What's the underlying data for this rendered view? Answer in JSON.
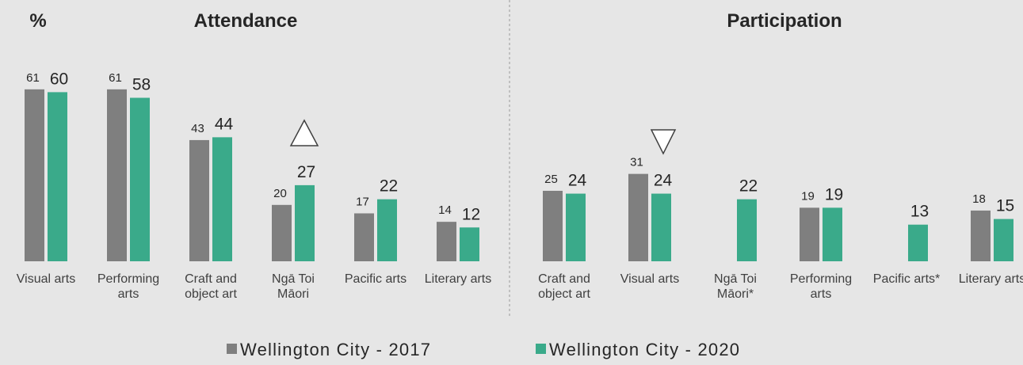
{
  "chart_data": [
    {
      "type": "bar",
      "title": "Attendance",
      "ylabel": "%",
      "categories": [
        "Visual arts",
        "Performing arts",
        "Craft and object art",
        "Ngā Toi Māori",
        "Pacific arts",
        "Literary arts"
      ],
      "series": [
        {
          "name": "Wellington City - 2017",
          "color": "#7f7f7f",
          "values": [
            61,
            61,
            43,
            20,
            17,
            14
          ]
        },
        {
          "name": "Wellington City - 2020",
          "color": "#3aaa8a",
          "values": [
            60,
            58,
            44,
            27,
            22,
            12
          ]
        }
      ]
    },
    {
      "type": "bar",
      "title": "Participation",
      "categories": [
        "Craft and object art",
        "Visual arts",
        "Ngā Toi Māori*",
        "Performing arts",
        "Pacific arts*",
        "Literary arts"
      ],
      "series": [
        {
          "name": "Wellington City - 2017",
          "color": "#7f7f7f",
          "values": [
            25,
            31,
            null,
            19,
            null,
            18
          ]
        },
        {
          "name": "Wellington City - 2020",
          "color": "#3aaa8a",
          "values": [
            24,
            24,
            22,
            19,
            13,
            15
          ]
        }
      ]
    }
  ]
}
